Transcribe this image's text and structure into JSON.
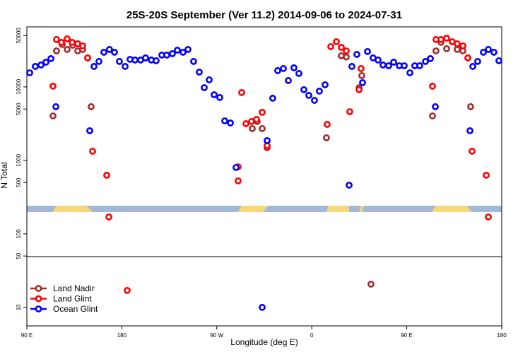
{
  "chart_data": {
    "type": "scatter",
    "title": "25S-20S September (Ver 11.2)   2014-09-06 to 2024-07-31",
    "x_label": "Longitude (deg E)",
    "y_label": "N Total",
    "log_y": true,
    "legend": "lower left",
    "xlim": [
      90,
      540
    ],
    "ylim": [
      5.6,
      65600
    ],
    "xticks": [
      {
        "value": 90,
        "label": "90 E"
      },
      180,
      {
        "value": 270,
        "label": "90 W"
      },
      {
        "value": 360,
        "label": "0"
      },
      {
        "value": 450,
        "label": "90 E"
      },
      {
        "value": 540,
        "label": "180"
      }
    ],
    "yticks": [
      10,
      50,
      100,
      500,
      1000,
      5000,
      10000,
      50000
    ],
    "series": [
      {
        "name": "Land Nadir",
        "color": "#a52a2a",
        "x": [
          114.8,
          118.1,
          123.5,
          128.2,
          133.5,
          138.2,
          142.9,
          147.6,
          150.9,
          303.6,
          308.3,
          313.0,
          317.7,
          373.9,
          388.0,
          392.7,
          404.8,
          407.4,
          416.1,
          474.4,
          477.7,
          482.4,
          487.8,
          497.8,
          503.2,
          507.9,
          510.5
        ],
        "values": [
          4030,
          30900,
          37800,
          32350,
          36900,
          30900,
          32350,
          24800,
          5380,
          2710,
          3380,
          2710,
          1490,
          2030,
          26500,
          25500,
          9770,
          14260,
          20.7,
          4030,
          30900,
          40400,
          33100,
          32350,
          30900,
          24800,
          5380
        ]
      },
      {
        "name": "Land Glint",
        "color": "#ff0000",
        "x": [
          114.8,
          118.1,
          122.8,
          128.2,
          132.9,
          138.2,
          142.9,
          147.6,
          152.3,
          165.7,
          167.7,
          185.1,
          290.2,
          290.2,
          293.6,
          297.6,
          302.9,
          307.6,
          313.0,
          317.7,
          374.6,
          378.0,
          383.3,
          388.0,
          392.7,
          396.0,
          404.8,
          406.7,
          474.4,
          477.7,
          482.4,
          487.8,
          493.1,
          497.8,
          503.2,
          507.9,
          511.9,
          525.3,
          527.3
        ],
        "values": [
          10230,
          44100,
          40400,
          45100,
          40400,
          38600,
          36100,
          24800,
          1333,
          628,
          170,
          17.0,
          818,
          526,
          8380,
          3160,
          3380,
          3610,
          4510,
          1590,
          3090,
          35300,
          41200,
          34500,
          30900,
          4600,
          9160,
          17780,
          10230,
          44100,
          44100,
          46000,
          41200,
          38600,
          36100,
          24800,
          1333,
          628,
          170
        ]
      },
      {
        "name": "Ocean Glint",
        "color": "#0000ff",
        "x": [
          92.7,
          98.0,
          103.4,
          108.1,
          112.8,
          117.5,
          149.6,
          153.6,
          158.3,
          163.0,
          168.3,
          173.0,
          177.7,
          183.1,
          187.8,
          192.5,
          197.8,
          202.5,
          207.9,
          212.5,
          217.9,
          222.6,
          227.9,
          232.6,
          238.0,
          242.7,
          248.0,
          253.4,
          258.1,
          262.8,
          267.5,
          272.8,
          277.5,
          282.9,
          288.2,
          313.0,
          317.7,
          323.0,
          327.7,
          333.1,
          337.8,
          343.1,
          347.8,
          352.5,
          357.2,
          362.5,
          367.2,
          372.6,
          395.4,
          398.0,
          402.7,
          408.1,
          412.8,
          418.1,
          422.8,
          427.5,
          432.9,
          437.6,
          442.9,
          447.6,
          453.0,
          457.6,
          462.3,
          467.7,
          472.4,
          477.1,
          509.9,
          512.6,
          517.2,
          522.6,
          527.3,
          532.6,
          537.3
        ],
        "values": [
          15560,
          19000,
          19860,
          21700,
          24270,
          5380,
          2535,
          19000,
          22200,
          29600,
          32350,
          29600,
          22200,
          19000,
          23700,
          23200,
          23200,
          24800,
          23200,
          22700,
          27100,
          27100,
          28300,
          31600,
          29600,
          32350,
          22200,
          15900,
          9770,
          12470,
          7830,
          7180,
          3450,
          3230,
          802,
          10,
          1860,
          7020,
          16640,
          17780,
          12210,
          18200,
          15230,
          9160,
          7670,
          6560,
          8750,
          10690,
          460,
          19000,
          27700,
          11430,
          30300,
          24800,
          23200,
          19860,
          19400,
          21700,
          19400,
          19400,
          15560,
          19400,
          19420,
          22200,
          24270,
          5380,
          2535,
          19000,
          22200,
          29600,
          32350,
          29600,
          22700
        ]
      }
    ]
  }
}
